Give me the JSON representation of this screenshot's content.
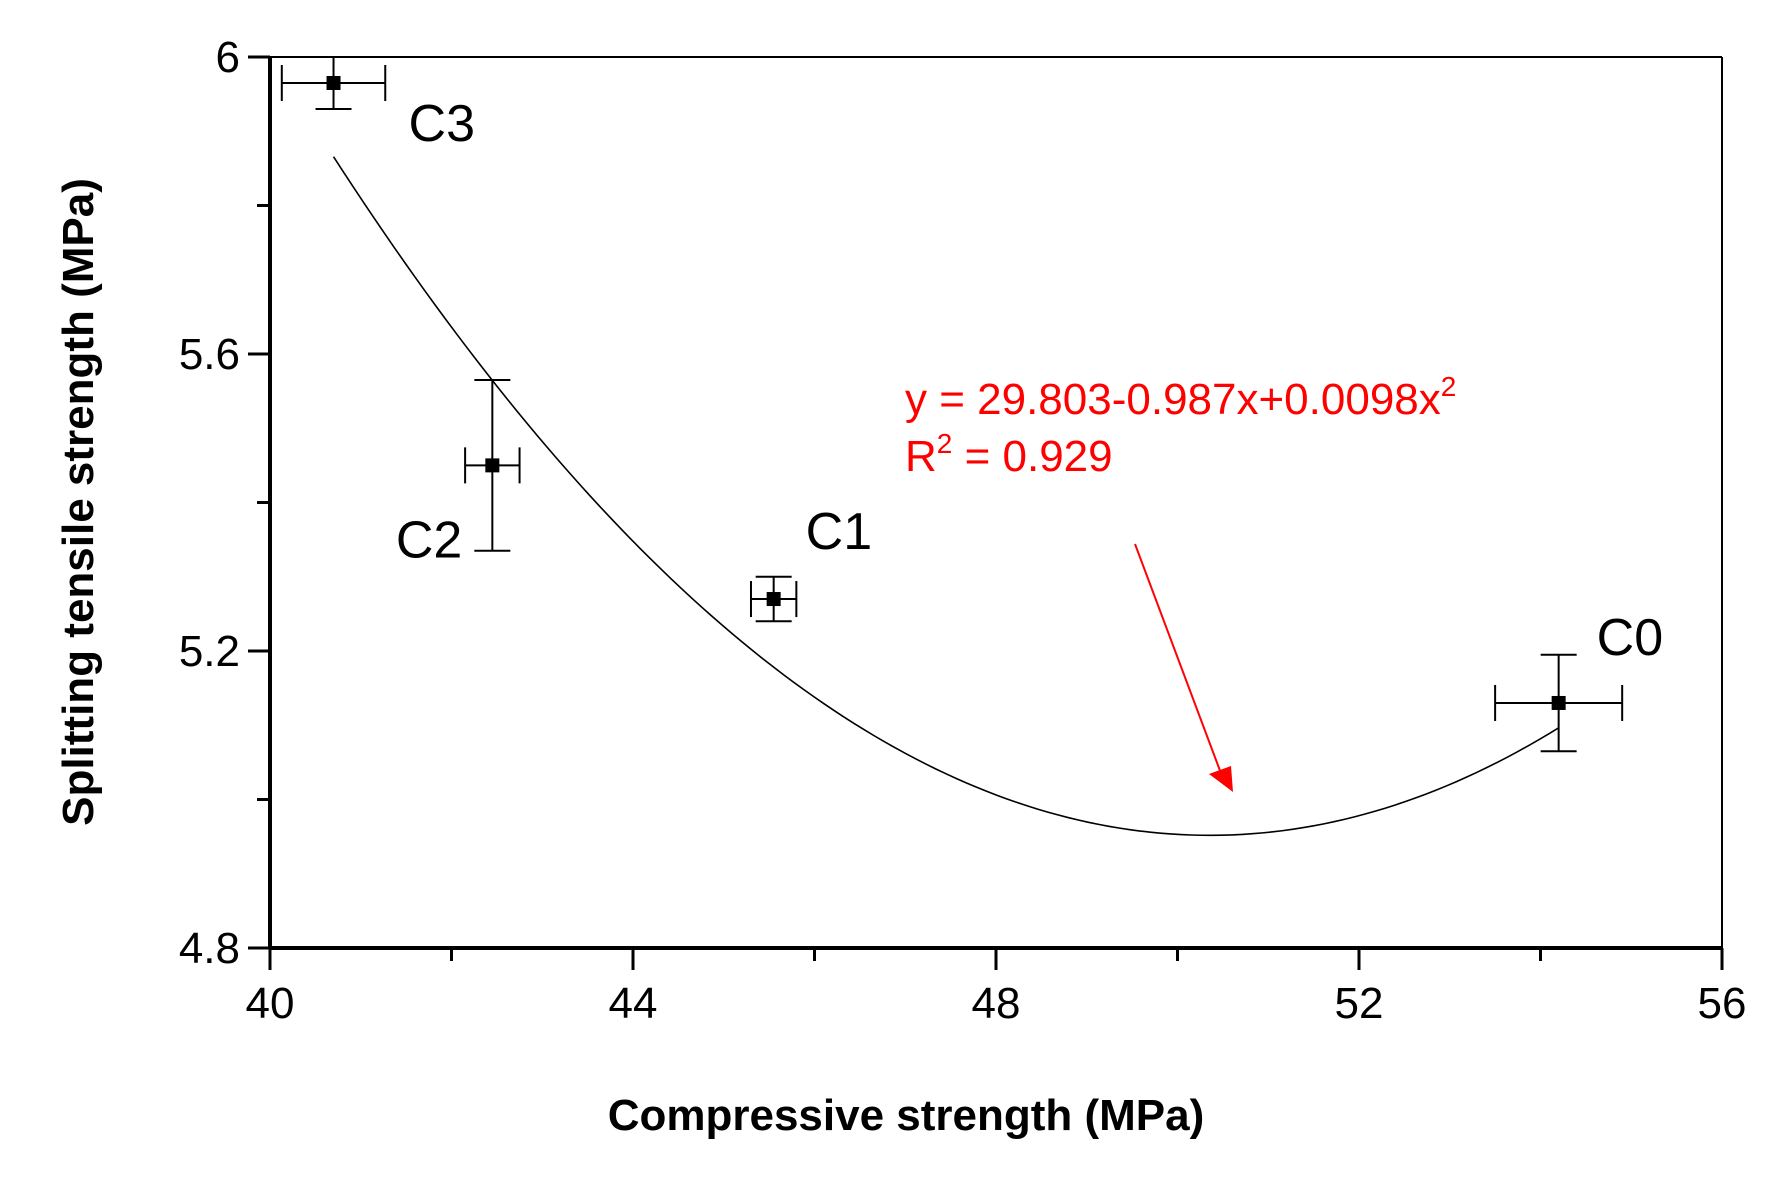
{
  "chart_data": {
    "type": "scatter",
    "title": "",
    "xlabel": "Compressive strength (MPa)",
    "ylabel": "Splitting tensile strength (MPa)",
    "xlim": [
      40,
      56
    ],
    "ylim": [
      4.8,
      6.0
    ],
    "xticks": [
      "40",
      "44",
      "48",
      "52",
      "56"
    ],
    "yticks": [
      "4.8",
      "5.2",
      "5.6",
      "6"
    ],
    "grid": false,
    "points": [
      {
        "label": "C0",
        "x": 54.2,
        "y": 5.13,
        "xerr": 0.7,
        "yerr": 0.065
      },
      {
        "label": "C1",
        "x": 45.55,
        "y": 5.27,
        "xerr": 0.25,
        "yerr": 0.03
      },
      {
        "label": "C2",
        "x": 42.45,
        "y": 5.45,
        "xerr": 0.3,
        "yerr": 0.115
      },
      {
        "label": "C3",
        "x": 40.7,
        "y": 5.965,
        "xerr": 0.57,
        "yerr": 0.035
      }
    ],
    "fit": {
      "intercept": 29.803,
      "linear": -0.987,
      "quadratic": 0.0098,
      "x_range": [
        40.7,
        54.2
      ]
    },
    "annotation": {
      "equation": "y = 29.803-0.987x+0.0098x",
      "equation_sup": "2",
      "r2_prefix": "R",
      "r2_sup": "2",
      "r2_value": " = 0.929",
      "color": "#ff0000"
    }
  }
}
